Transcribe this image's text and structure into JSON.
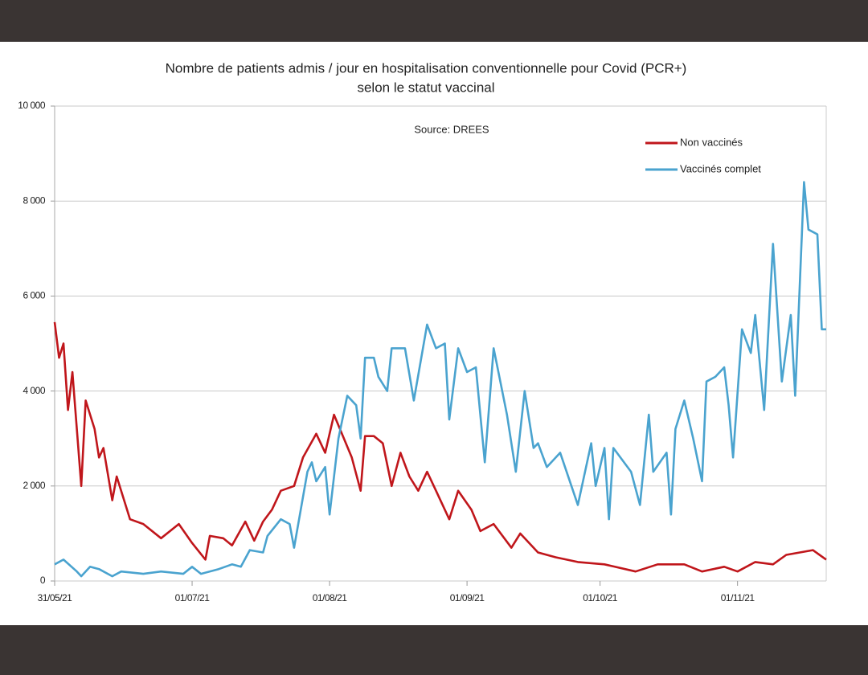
{
  "chart_data": {
    "type": "line",
    "title": [
      "Nombre de patients admis / jour en hospitalisation conventionnelle pour Covid (PCR+)",
      "selon le statut vaccinal"
    ],
    "annotation": "Source: DREES",
    "xlim": [
      0,
      174
    ],
    "xticks": [
      {
        "value": 0,
        "label": "31/05/21"
      },
      {
        "value": 31,
        "label": "01/07/21"
      },
      {
        "value": 62,
        "label": "01/08/21"
      },
      {
        "value": 93,
        "label": "01/09/21"
      },
      {
        "value": 123,
        "label": "01/10/21"
      },
      {
        "value": 154,
        "label": "01/11/21"
      }
    ],
    "ylim": [
      0,
      10000
    ],
    "yticks": [
      0,
      {
        "value": 2000,
        "label": "2 000"
      },
      {
        "value": 4000,
        "label": "4 000"
      },
      {
        "value": 6000,
        "label": "6 000"
      },
      {
        "value": 8000,
        "label": "8 000"
      },
      {
        "value": 10000,
        "label": "10 000"
      }
    ],
    "grid": true,
    "legend": "upper right",
    "series": [
      {
        "name": "Non vaccinés",
        "color": "#c0161b",
        "x": [
          0,
          1,
          2,
          3,
          4,
          6,
          7,
          9,
          10,
          11,
          13,
          14,
          17,
          20,
          24,
          28,
          31,
          34,
          35,
          38,
          40,
          43,
          45,
          47,
          49,
          51,
          54,
          56,
          59,
          61,
          63,
          67,
          69,
          70,
          72,
          74,
          76,
          78,
          80,
          82,
          84,
          86,
          89,
          91,
          94,
          96,
          99,
          103,
          105,
          109,
          113,
          118,
          124,
          131,
          136,
          142,
          146,
          151,
          154,
          158,
          162,
          165,
          171,
          174
        ],
        "values": [
          5450,
          4700,
          5000,
          3600,
          4400,
          2000,
          3800,
          3200,
          2600,
          2800,
          1700,
          2200,
          1300,
          1200,
          900,
          1200,
          800,
          450,
          950,
          900,
          750,
          1250,
          850,
          1250,
          1500,
          1900,
          2000,
          2600,
          3100,
          2700,
          3500,
          2600,
          1900,
          3050,
          3050,
          2900,
          2000,
          2700,
          2200,
          1900,
          2300,
          1900,
          1300,
          1900,
          1500,
          1050,
          1200,
          700,
          1000,
          600,
          500,
          400,
          350,
          200,
          350,
          350,
          200,
          300,
          200,
          400,
          350,
          550,
          650,
          450
        ]
      },
      {
        "name": "Vaccinés complet",
        "color": "#4aa3cf",
        "x": [
          0,
          2,
          5,
          6,
          8,
          10,
          13,
          15,
          20,
          24,
          29,
          31,
          33,
          37,
          40,
          42,
          44,
          47,
          48,
          51,
          53,
          54,
          57,
          58,
          59,
          61,
          62,
          64,
          66,
          68,
          69,
          70,
          72,
          73,
          75,
          76,
          79,
          81,
          84,
          86,
          88,
          89,
          91,
          93,
          95,
          97,
          99,
          102,
          104,
          106,
          108,
          109,
          111,
          114,
          118,
          121,
          122,
          124,
          125,
          126,
          130,
          132,
          134,
          135,
          138,
          139,
          140,
          142,
          144,
          146,
          147,
          149,
          151,
          152,
          153,
          155,
          157,
          158,
          160,
          162,
          164,
          166,
          167,
          169,
          170,
          172,
          173,
          174
        ],
        "values": [
          350,
          450,
          200,
          100,
          300,
          250,
          100,
          200,
          150,
          200,
          150,
          300,
          150,
          250,
          350,
          300,
          650,
          600,
          950,
          1300,
          1200,
          700,
          2300,
          2500,
          2100,
          2400,
          1400,
          3000,
          3900,
          3700,
          3000,
          4700,
          4700,
          4300,
          4000,
          4900,
          4900,
          3800,
          5400,
          4900,
          5000,
          3400,
          4900,
          4400,
          4500,
          2500,
          4900,
          3500,
          2300,
          4000,
          2800,
          2900,
          2400,
          2700,
          1600,
          2900,
          2000,
          2800,
          1300,
          2800,
          2300,
          1600,
          3500,
          2300,
          2700,
          1400,
          3200,
          3800,
          3000,
          2100,
          4200,
          4300,
          4500,
          3700,
          2600,
          5300,
          4800,
          5600,
          3600,
          7100,
          4200,
          5600,
          3900,
          8400,
          7400,
          7300,
          5300,
          5300
        ]
      }
    ]
  }
}
